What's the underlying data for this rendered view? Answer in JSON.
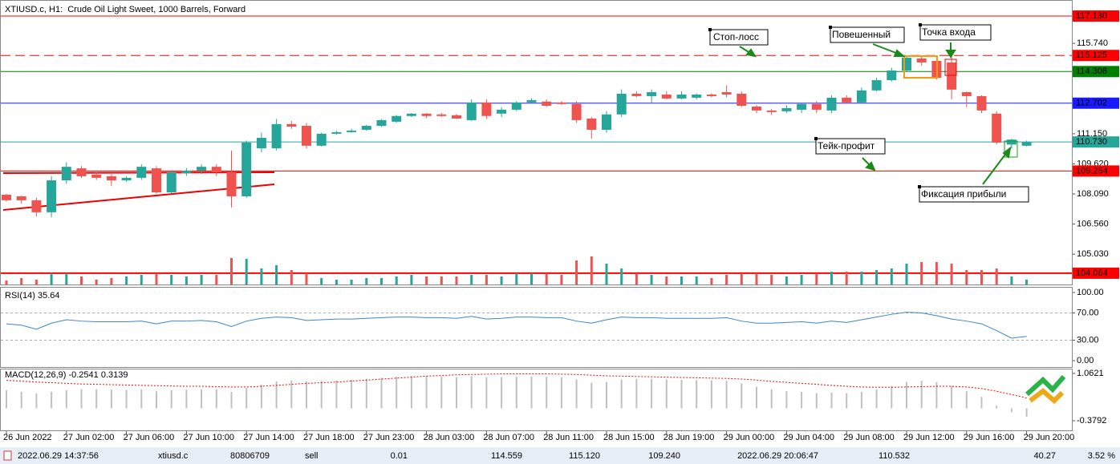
{
  "chart_data": [
    {
      "type": "candlestick",
      "title": "XTIUSD.c, H1:  Crude Oil Light Sweet, 1000 Barrels, Forward",
      "categories": [
        "26 Jun 2022",
        null,
        null,
        null,
        "27 Jun 02:00",
        null,
        null,
        null,
        "27 Jun 06:00",
        null,
        null,
        null,
        "27 Jun 10:00",
        null,
        null,
        null,
        "27 Jun 14:00",
        null,
        null,
        null,
        "27 Jun 18:00",
        null,
        null,
        null,
        "27 Jun 23:00",
        null,
        null,
        null,
        "28 Jun 03:00",
        null,
        null,
        null,
        "28 Jun 07:00",
        null,
        null,
        null,
        "28 Jun 11:00",
        null,
        null,
        null,
        "28 Jun 15:00",
        null,
        null,
        null,
        "28 Jun 19:00",
        null,
        null,
        null,
        "29 Jun 00:00",
        null,
        null,
        null,
        "29 Jun 04:00",
        null,
        null,
        null,
        "29 Jun 08:00",
        null,
        null,
        null,
        "29 Jun 12:00",
        null,
        null,
        null,
        "29 Jun 16:00",
        null,
        null,
        null,
        "29 Jun 20:00"
      ],
      "open": [
        108.05,
        107.97,
        107.77,
        107.16,
        108.78,
        109.39,
        109.07,
        108.99,
        108.78,
        108.91,
        109.39,
        108.17,
        109.15,
        109.27,
        109.47,
        109.19,
        107.97,
        110.41,
        110.41,
        111.64,
        111.55,
        110.54,
        111.15,
        111.23,
        111.35,
        111.55,
        111.76,
        112.05,
        112.17,
        112.13,
        112.09,
        111.84,
        112.74,
        112.17,
        112.37,
        112.74,
        112.78,
        112.74,
        112.66,
        111.92,
        111.35,
        112.13,
        113.18,
        113.06,
        113.14,
        112.94,
        112.98,
        113.14,
        113.26,
        113.18,
        112.53,
        112.33,
        112.29,
        112.37,
        112.66,
        112.33,
        112.98,
        112.74,
        113.35,
        113.87,
        114.36,
        114.97,
        114.85,
        114.77,
        113.26,
        113.06,
        112.17,
        110.6,
        110.54
      ],
      "high": [
        108.1,
        108.0,
        107.9,
        109.0,
        109.7,
        109.5,
        109.2,
        109.1,
        109.0,
        109.6,
        109.5,
        109.3,
        109.4,
        109.6,
        109.6,
        110.3,
        110.8,
        111.2,
        111.9,
        111.8,
        111.7,
        111.2,
        111.3,
        111.4,
        111.6,
        111.9,
        112.1,
        112.2,
        112.2,
        112.2,
        112.15,
        112.9,
        112.9,
        112.5,
        112.8,
        112.95,
        112.9,
        112.8,
        112.8,
        112.0,
        112.3,
        113.4,
        113.3,
        113.4,
        113.3,
        113.3,
        113.2,
        113.2,
        113.6,
        113.3,
        112.6,
        112.4,
        112.6,
        112.7,
        112.8,
        113.1,
        113.1,
        113.5,
        114.0,
        114.5,
        115.1,
        115.12,
        115.0,
        115.12,
        113.3,
        113.1,
        112.3,
        110.9,
        110.8
      ],
      "low": [
        107.7,
        107.6,
        106.95,
        106.9,
        108.6,
        108.9,
        108.8,
        108.5,
        108.7,
        108.8,
        108.1,
        108.1,
        109.0,
        109.1,
        109.0,
        107.4,
        107.9,
        110.2,
        110.3,
        111.4,
        110.4,
        110.5,
        111.1,
        111.2,
        111.3,
        111.5,
        111.7,
        112.0,
        111.95,
        112.0,
        111.9,
        111.8,
        111.9,
        112.0,
        112.3,
        112.7,
        112.5,
        112.6,
        111.7,
        110.9,
        111.2,
        112.0,
        113.0,
        112.7,
        112.9,
        112.9,
        112.9,
        113.0,
        113.0,
        112.5,
        112.2,
        112.1,
        112.2,
        112.2,
        112.2,
        112.2,
        112.7,
        112.7,
        113.3,
        113.8,
        114.3,
        114.6,
        113.9,
        112.9,
        112.5,
        112.2,
        110.6,
        110.4,
        110.5
      ],
      "close": [
        107.77,
        107.77,
        107.16,
        108.78,
        109.47,
        108.99,
        108.91,
        108.78,
        108.91,
        109.47,
        108.17,
        109.19,
        109.27,
        109.47,
        109.19,
        107.97,
        110.7,
        110.94,
        111.64,
        111.51,
        110.54,
        111.15,
        111.23,
        111.31,
        111.55,
        111.84,
        112.05,
        112.17,
        112.05,
        112.05,
        111.92,
        112.74,
        112.05,
        112.37,
        112.74,
        112.86,
        112.57,
        112.66,
        111.84,
        111.35,
        112.13,
        113.18,
        113.06,
        113.26,
        112.94,
        113.14,
        113.14,
        113.06,
        113.14,
        112.57,
        112.33,
        112.25,
        112.45,
        112.66,
        112.37,
        112.98,
        112.74,
        113.35,
        113.87,
        114.36,
        115.01,
        114.77,
        113.99,
        113.39,
        113.06,
        112.33,
        110.7,
        110.85,
        110.73
      ],
      "volume": [
        5,
        8,
        6,
        14,
        14,
        10,
        6,
        8,
        10,
        12,
        14,
        12,
        10,
        12,
        12,
        33,
        32,
        20,
        24,
        18,
        14,
        8,
        6,
        6,
        8,
        8,
        10,
        12,
        10,
        10,
        10,
        12,
        12,
        10,
        14,
        14,
        14,
        12,
        30,
        35,
        26,
        20,
        14,
        12,
        10,
        10,
        10,
        8,
        12,
        14,
        14,
        12,
        10,
        12,
        14,
        16,
        16,
        16,
        18,
        20,
        26,
        28,
        28,
        26,
        18,
        18,
        20,
        10,
        6
      ],
      "up_color": "#26a69a",
      "down_color": "#ef5350",
      "ylim": [
        103.49,
        117.74
      ],
      "yticks": [
        {
          "value": 115.74,
          "label": "115.740"
        },
        {
          "value": 111.15,
          "label": "111.150"
        },
        {
          "value": 109.62,
          "label": "109.620"
        },
        {
          "value": 108.09,
          "label": "108.090"
        },
        {
          "value": 106.56,
          "label": "106.560"
        },
        {
          "value": 105.03,
          "label": "105.030"
        }
      ],
      "levels": [
        {
          "value": 117.13,
          "label": "117.130",
          "color": "#ff0000",
          "style": "solid"
        },
        {
          "value": 115.125,
          "label": "115.125",
          "color": "#ff0000",
          "style": "dashed"
        },
        {
          "value": 114.308,
          "label": "114.308",
          "color": "#008000",
          "style": "solid"
        },
        {
          "value": 112.702,
          "label": "112.702",
          "color": "#1a1aff",
          "style": "solid"
        },
        {
          "value": 110.73,
          "label": "110.730",
          "color": "#26a69a",
          "style": "solid"
        },
        {
          "value": 109.254,
          "label": "109.254",
          "color": "#ff0000",
          "style": "solid"
        },
        {
          "value": 104.064,
          "label": "104.064",
          "color": "#ff0000",
          "style": "bold"
        }
      ],
      "annotations": [
        "Стоп-лосс",
        "Повешенный",
        "Точка входа",
        "Тейк-профит",
        "Фиксация прибыли"
      ]
    },
    {
      "type": "line",
      "title": "RSI(14) 35.64",
      "values": [
        54,
        52,
        46,
        55,
        60,
        58,
        57,
        57,
        57,
        58,
        54,
        58,
        58,
        59,
        57,
        50,
        58,
        62,
        64,
        63,
        59,
        60,
        61,
        61,
        62,
        63,
        64,
        64,
        63,
        63,
        62,
        65,
        61,
        62,
        64,
        64,
        63,
        63,
        58,
        55,
        60,
        64,
        63,
        63,
        62,
        62,
        62,
        62,
        63,
        58,
        55,
        55,
        56,
        57,
        55,
        58,
        56,
        60,
        64,
        68,
        71,
        70,
        66,
        61,
        58,
        54,
        44,
        33,
        35.64
      ],
      "color": "#3d85c6",
      "ylim": [
        -9.4,
        108.2
      ],
      "yticks": [
        {
          "value": 100,
          "label": "100.00"
        },
        {
          "value": 70,
          "label": "70.00"
        },
        {
          "value": 30,
          "label": "30.00"
        },
        {
          "value": 0,
          "label": "0.00"
        }
      ],
      "levels": [
        70,
        30
      ]
    },
    {
      "type": "macd",
      "title": "MACD(12,26,9) -0.2541 0.3139",
      "histogram": [
        0.55,
        0.5,
        0.45,
        0.5,
        0.55,
        0.58,
        0.58,
        0.57,
        0.56,
        0.58,
        0.52,
        0.55,
        0.57,
        0.58,
        0.58,
        0.5,
        0.62,
        0.72,
        0.82,
        0.85,
        0.82,
        0.83,
        0.85,
        0.87,
        0.9,
        0.93,
        0.96,
        0.98,
        0.98,
        0.97,
        0.95,
        0.98,
        0.95,
        0.95,
        0.96,
        0.97,
        0.96,
        0.95,
        0.88,
        0.78,
        0.8,
        0.88,
        0.9,
        0.9,
        0.88,
        0.87,
        0.86,
        0.85,
        0.84,
        0.76,
        0.66,
        0.58,
        0.52,
        0.5,
        0.46,
        0.48,
        0.46,
        0.5,
        0.58,
        0.68,
        0.8,
        0.84,
        0.8,
        0.68,
        0.52,
        0.35,
        0.08,
        -0.12,
        -0.2541
      ],
      "histogram_color": "#c0c0c0",
      "signal": [
        0.85,
        0.83,
        0.8,
        0.78,
        0.76,
        0.74,
        0.73,
        0.72,
        0.71,
        0.7,
        0.69,
        0.68,
        0.67,
        0.67,
        0.66,
        0.65,
        0.65,
        0.67,
        0.7,
        0.73,
        0.76,
        0.78,
        0.8,
        0.83,
        0.86,
        0.89,
        0.92,
        0.95,
        0.98,
        1.0,
        1.02,
        1.03,
        1.04,
        1.05,
        1.05,
        1.05,
        1.05,
        1.04,
        1.03,
        1.01,
        0.99,
        0.98,
        0.97,
        0.96,
        0.95,
        0.94,
        0.93,
        0.92,
        0.91,
        0.89,
        0.86,
        0.82,
        0.79,
        0.76,
        0.73,
        0.7,
        0.67,
        0.65,
        0.64,
        0.64,
        0.65,
        0.66,
        0.67,
        0.67,
        0.65,
        0.6,
        0.52,
        0.42,
        0.3139
      ],
      "signal_color": "#ff0000",
      "ylim": [
        -0.672,
        1.1843
      ],
      "yticks": [
        1.0621,
        -0.3792
      ]
    }
  ],
  "status_bar": {
    "time": "2022.06.29 14:37:56",
    "symbol": "xtiusd.c",
    "ticket": "80806709",
    "type": "sell",
    "volume": "0.01",
    "price": "114.559",
    "sl": "115.120",
    "tp": "109.240",
    "close_time": "2022.06.29 20:06:47",
    "close_price": "110.532",
    "profit": "40.27",
    "percent": "3.52 %"
  }
}
